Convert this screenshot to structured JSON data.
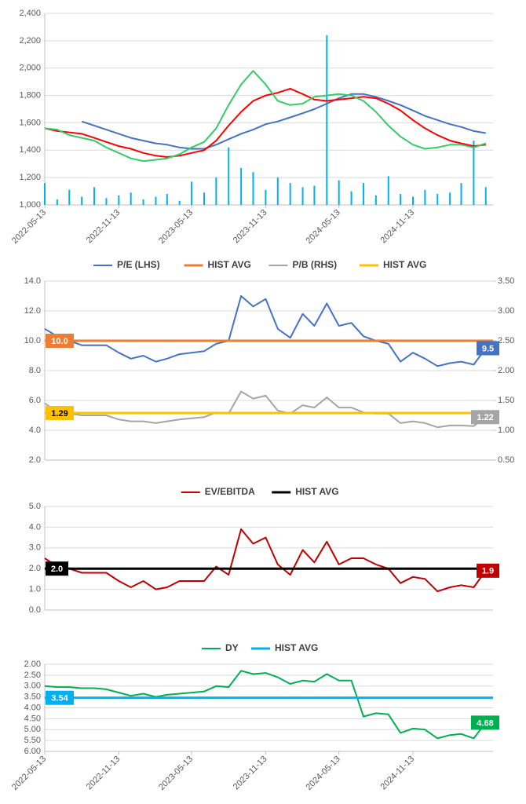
{
  "chart_data": [
    {
      "type": "line",
      "x": [
        "2022-05-13",
        "2022-06-13",
        "2022-07-13",
        "2022-08-13",
        "2022-09-13",
        "2022-10-13",
        "2022-11-13",
        "2022-12-13",
        "2023-01-13",
        "2023-02-13",
        "2023-03-13",
        "2023-04-13",
        "2023-05-13",
        "2023-06-13",
        "2023-07-13",
        "2023-08-13",
        "2023-09-13",
        "2023-10-13",
        "2023-11-13",
        "2023-12-13",
        "2024-01-13",
        "2024-02-13",
        "2024-03-13",
        "2024-04-13",
        "2024-05-13",
        "2024-06-13",
        "2024-07-13",
        "2024-08-13",
        "2024-09-13",
        "2024-10-13",
        "2024-11-13",
        "2024-12-13",
        "2025-01-13",
        "2025-02-13",
        "2025-03-13",
        "2025-04-13",
        "2025-05-13"
      ],
      "xlim": [
        "2022-05-13",
        "2025-05-31"
      ],
      "xticks": [
        "2022-05-13",
        "2022-11-13",
        "2023-05-13",
        "2023-11-13",
        "2024-05-13",
        "2024-11-13"
      ],
      "ylim": [
        1000,
        2400
      ],
      "yticks": [
        {
          "value": 1000,
          "label": "1,000"
        },
        {
          "value": 1200,
          "label": "1,200"
        },
        {
          "value": 1400,
          "label": "1,400"
        },
        {
          "value": 1600,
          "label": "1,600"
        },
        {
          "value": 1800,
          "label": "1,800"
        },
        {
          "value": 2000,
          "label": "2,000"
        },
        {
          "value": 2200,
          "label": "2,200"
        },
        {
          "value": 2400,
          "label": "2,400"
        }
      ],
      "grid": true,
      "series": [
        {
          "type": "bar",
          "color": "#00b0f0",
          "values": [
            1160,
            1040,
            1110,
            1060,
            1130,
            1050,
            1070,
            1090,
            1040,
            1060,
            1080,
            1030,
            1170,
            1090,
            1200,
            1420,
            1270,
            1240,
            1110,
            1200,
            1160,
            1130,
            1140,
            2240,
            1180,
            1100,
            1160,
            1070,
            1210,
            1080,
            1060,
            1110,
            1080,
            1090,
            1160,
            1470,
            1130
          ]
        },
        {
          "color": "#4472c4",
          "values": [
            null,
            null,
            null,
            1610,
            1580,
            1550,
            1520,
            1490,
            1470,
            1450,
            1440,
            1420,
            1410,
            1410,
            1440,
            1480,
            1520,
            1550,
            1590,
            1610,
            1640,
            1670,
            1700,
            1740,
            1780,
            1810,
            1810,
            1790,
            1760,
            1730,
            1690,
            1650,
            1620,
            1590,
            1570,
            1540,
            1525
          ]
        },
        {
          "color": "#ff0000",
          "values": [
            1560,
            1540,
            1530,
            1520,
            1490,
            1460,
            1430,
            1410,
            1380,
            1360,
            1350,
            1360,
            1380,
            1400,
            1470,
            1580,
            1680,
            1760,
            1800,
            1820,
            1850,
            1810,
            1770,
            1760,
            1770,
            1780,
            1790,
            1780,
            1740,
            1690,
            1620,
            1560,
            1510,
            1470,
            1450,
            1430,
            1440
          ]
        },
        {
          "color": "#33cc66",
          "values": [
            1560,
            1550,
            1510,
            1490,
            1470,
            1420,
            1380,
            1340,
            1320,
            1330,
            1340,
            1370,
            1420,
            1460,
            1560,
            1730,
            1880,
            1980,
            1880,
            1760,
            1730,
            1740,
            1790,
            1800,
            1810,
            1800,
            1760,
            1680,
            1580,
            1500,
            1440,
            1410,
            1420,
            1440,
            1440,
            1420,
            1450
          ]
        }
      ]
    },
    {
      "type": "line",
      "x": [
        "2022-05-13",
        "2022-06-13",
        "2022-07-13",
        "2022-08-13",
        "2022-09-13",
        "2022-10-13",
        "2022-11-13",
        "2022-12-13",
        "2023-01-13",
        "2023-02-13",
        "2023-03-13",
        "2023-04-13",
        "2023-05-13",
        "2023-06-13",
        "2023-07-13",
        "2023-08-13",
        "2023-09-13",
        "2023-10-13",
        "2023-11-13",
        "2023-12-13",
        "2024-01-13",
        "2024-02-13",
        "2024-03-13",
        "2024-04-13",
        "2024-05-13",
        "2024-06-13",
        "2024-07-13",
        "2024-08-13",
        "2024-09-13",
        "2024-10-13",
        "2024-11-13",
        "2024-12-13",
        "2025-01-13",
        "2025-02-13",
        "2025-03-13",
        "2025-04-13",
        "2025-05-13"
      ],
      "xlim": [
        "2022-05-13",
        "2025-05-31"
      ],
      "ylim": [
        2,
        14
      ],
      "yticks": [
        {
          "value": 2,
          "label": "2.0"
        },
        {
          "value": 4,
          "label": "4.0"
        },
        {
          "value": 6,
          "label": "6.0"
        },
        {
          "value": 8,
          "label": "8.0"
        },
        {
          "value": 10,
          "label": "10.0"
        },
        {
          "value": 12,
          "label": "12.0"
        },
        {
          "value": 14,
          "label": "14.0"
        }
      ],
      "y2lim": [
        0.5,
        3.5
      ],
      "y2ticks": [
        {
          "value": 0.5,
          "label": "0.50"
        },
        {
          "value": 1,
          "label": "1.00"
        },
        {
          "value": 1.5,
          "label": "1.50"
        },
        {
          "value": 2,
          "label": "2.00"
        },
        {
          "value": 2.5,
          "label": "2.50"
        },
        {
          "value": 3,
          "label": "3.00"
        },
        {
          "value": 3.5,
          "label": "3.50"
        }
      ],
      "grid": true,
      "series": [
        {
          "name": "P/E (LHS)",
          "color": "#4472c4",
          "values": [
            10.8,
            10.3,
            10.0,
            9.7,
            9.7,
            9.7,
            9.2,
            8.8,
            9.0,
            8.6,
            8.8,
            9.1,
            9.2,
            9.3,
            9.8,
            10.0,
            13.0,
            12.3,
            12.8,
            10.8,
            10.2,
            11.8,
            11.0,
            12.5,
            11.0,
            11.2,
            10.3,
            10.0,
            9.8,
            8.6,
            9.2,
            8.8,
            8.3,
            8.5,
            8.6,
            8.4,
            9.5
          ],
          "end_label": "9.5"
        },
        {
          "name": "HIST AVG",
          "type": "hline",
          "color": "#ed7d31",
          "value": 10,
          "value_label": "10.0"
        },
        {
          "name": "P/B (RHS)",
          "axis": "y2",
          "color": "#a5a5a5",
          "values": [
            1.45,
            1.32,
            1.28,
            1.25,
            1.25,
            1.25,
            1.18,
            1.15,
            1.15,
            1.12,
            1.15,
            1.18,
            1.2,
            1.22,
            1.3,
            1.28,
            1.65,
            1.53,
            1.58,
            1.33,
            1.28,
            1.42,
            1.38,
            1.55,
            1.38,
            1.38,
            1.3,
            1.28,
            1.28,
            1.12,
            1.15,
            1.12,
            1.05,
            1.08,
            1.08,
            1.07,
            1.22
          ],
          "end_label": "1.22"
        },
        {
          "name": "HIST AVG",
          "type": "hline",
          "axis": "y2",
          "color": "#ffc000",
          "value": 1.29,
          "value_label": "1.29"
        }
      ]
    },
    {
      "type": "line",
      "x": [
        "2022-05-13",
        "2022-06-13",
        "2022-07-13",
        "2022-08-13",
        "2022-09-13",
        "2022-10-13",
        "2022-11-13",
        "2022-12-13",
        "2023-01-13",
        "2023-02-13",
        "2023-03-13",
        "2023-04-13",
        "2023-05-13",
        "2023-06-13",
        "2023-07-13",
        "2023-08-13",
        "2023-09-13",
        "2023-10-13",
        "2023-11-13",
        "2023-12-13",
        "2024-01-13",
        "2024-02-13",
        "2024-03-13",
        "2024-04-13",
        "2024-05-13",
        "2024-06-13",
        "2024-07-13",
        "2024-08-13",
        "2024-09-13",
        "2024-10-13",
        "2024-11-13",
        "2024-12-13",
        "2025-01-13",
        "2025-02-13",
        "2025-03-13",
        "2025-04-13",
        "2025-05-13"
      ],
      "xlim": [
        "2022-05-13",
        "2025-05-31"
      ],
      "ylim": [
        0,
        5
      ],
      "yticks": [
        {
          "value": 0,
          "label": "0.0"
        },
        {
          "value": 1,
          "label": "1.0"
        },
        {
          "value": 2,
          "label": "2.0"
        },
        {
          "value": 3,
          "label": "3.0"
        },
        {
          "value": 4,
          "label": "4.0"
        },
        {
          "value": 5,
          "label": "5.0"
        }
      ],
      "grid": true,
      "series": [
        {
          "name": "EV/EBITDA",
          "color": "#c00000",
          "values": [
            2.5,
            2.1,
            2.0,
            1.8,
            1.8,
            1.8,
            1.4,
            1.1,
            1.4,
            1.0,
            1.1,
            1.4,
            1.4,
            1.4,
            2.1,
            1.7,
            3.9,
            3.2,
            3.5,
            2.2,
            1.7,
            2.9,
            2.3,
            3.3,
            2.2,
            2.5,
            2.5,
            2.2,
            2.0,
            1.3,
            1.6,
            1.5,
            0.9,
            1.1,
            1.2,
            1.1,
            1.9
          ],
          "end_label": "1.9"
        },
        {
          "name": "HIST AVG",
          "type": "hline",
          "color": "#000000",
          "value": 2,
          "value_label": "2.0"
        }
      ]
    },
    {
      "type": "line",
      "x": [
        "2022-05-13",
        "2022-06-13",
        "2022-07-13",
        "2022-08-13",
        "2022-09-13",
        "2022-10-13",
        "2022-11-13",
        "2022-12-13",
        "2023-01-13",
        "2023-02-13",
        "2023-03-13",
        "2023-04-13",
        "2023-05-13",
        "2023-06-13",
        "2023-07-13",
        "2023-08-13",
        "2023-09-13",
        "2023-10-13",
        "2023-11-13",
        "2023-12-13",
        "2024-01-13",
        "2024-02-13",
        "2024-03-13",
        "2024-04-13",
        "2024-05-13",
        "2024-06-13",
        "2024-07-13",
        "2024-08-13",
        "2024-09-13",
        "2024-10-13",
        "2024-11-13",
        "2024-12-13",
        "2025-01-13",
        "2025-02-13",
        "2025-03-13",
        "2025-04-13",
        "2025-05-13"
      ],
      "xlim": [
        "2022-05-13",
        "2025-05-31"
      ],
      "xticks": [
        "2022-05-13",
        "2022-11-13",
        "2023-05-13",
        "2023-11-13",
        "2024-05-13",
        "2024-11-13"
      ],
      "ylim": [
        2,
        6
      ],
      "inverted": true,
      "yticks": [
        {
          "value": 2,
          "label": "2.00"
        },
        {
          "value": 2.5,
          "label": "2.50"
        },
        {
          "value": 3,
          "label": "3.00"
        },
        {
          "value": 3.5,
          "label": "3.50"
        },
        {
          "value": 4,
          "label": "4.00"
        },
        {
          "value": 4.5,
          "label": "4.50"
        },
        {
          "value": 5,
          "label": "5.00"
        },
        {
          "value": 5.5,
          "label": "5.50"
        },
        {
          "value": 6,
          "label": "6.00"
        }
      ],
      "grid": true,
      "series": [
        {
          "name": "DY",
          "color": "#00b050",
          "values": [
            3.0,
            3.05,
            3.05,
            3.1,
            3.1,
            3.15,
            3.3,
            3.45,
            3.35,
            3.5,
            3.4,
            3.35,
            3.3,
            3.25,
            3.0,
            3.05,
            2.3,
            2.45,
            2.4,
            2.6,
            2.9,
            2.75,
            2.8,
            2.45,
            2.75,
            2.75,
            4.4,
            4.25,
            4.3,
            5.15,
            4.95,
            5.0,
            5.4,
            5.25,
            5.2,
            5.4,
            4.68
          ],
          "end_label": "4.68"
        },
        {
          "name": "HIST AVG",
          "type": "hline",
          "color": "#00b0f0",
          "value": 3.54,
          "value_label": "3.54"
        }
      ]
    }
  ]
}
